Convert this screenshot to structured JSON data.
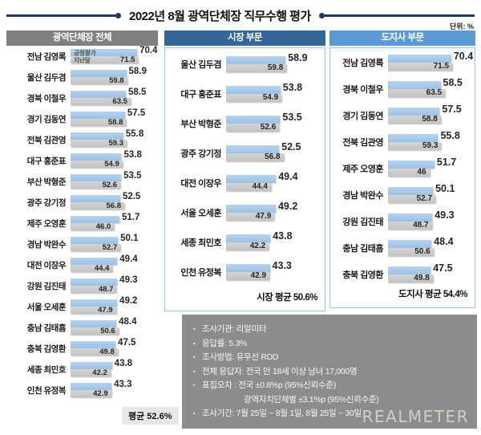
{
  "title": "2022년 8월 광역단체장 직무수행 평가",
  "unit_label": "단위: %",
  "legend": {
    "current": "긍정평가",
    "previous": "지난달"
  },
  "colors": {
    "accent_navy": "#1f3864",
    "header_all_bg": "#808080",
    "header_mayor_bg": "#33669a",
    "header_governor_bg": "#5b9bd5",
    "panel_border": "#9dc3e6",
    "bar_current": "#9dc3e6",
    "bar_previous": "#c9c9c9",
    "info_box_bg": "#8c8c8c",
    "average_chip_bg": "#e7e7e7"
  },
  "chart_data": [
    {
      "type": "bar",
      "orientation": "horizontal",
      "title": "광역단체장 전체",
      "unit": "%",
      "categories": [
        "전남 김영록",
        "울산 김두겸",
        "경북 이철우",
        "경기 김동연",
        "전북 김관영",
        "대구 홍준표",
        "부산 박형준",
        "광주 강기정",
        "제주 오영훈",
        "경남 박완수",
        "대전 이장우",
        "강원 김진태",
        "서울 오세훈",
        "충남 김태흠",
        "충북 김영환",
        "세종 최민호",
        "인천 유정복"
      ],
      "series": [
        {
          "name": "긍정평가",
          "values": [
            70.4,
            58.9,
            58.5,
            57.5,
            55.8,
            53.8,
            53.5,
            52.5,
            51.7,
            50.1,
            49.4,
            49.3,
            49.2,
            48.4,
            47.5,
            43.8,
            43.3
          ],
          "labels": [
            "70.4",
            "58.9",
            "58.5",
            "57.5",
            "55.8",
            "53.8",
            "53.5",
            "52.5",
            "51.7",
            "50.1",
            "49.4",
            "49.3",
            "49.2",
            "48.4",
            "47.5",
            "43.8",
            "43.3"
          ]
        },
        {
          "name": "지난달",
          "values": [
            71.5,
            59.8,
            63.5,
            58.8,
            59.3,
            54.9,
            52.6,
            56.8,
            46.0,
            52.7,
            44.4,
            48.7,
            47.9,
            50.6,
            49.8,
            42.2,
            42.9
          ],
          "labels": [
            "71.5",
            "59.8",
            "63.5",
            "58.8",
            "59.3",
            "54.9",
            "52.6",
            "56.8",
            "46.0",
            "52.7",
            "44.4",
            "48.7",
            "47.9",
            "50.6",
            "49.8",
            "42.2",
            "42.9"
          ]
        }
      ],
      "average_label": "평균 52.6%"
    },
    {
      "type": "bar",
      "orientation": "horizontal",
      "title": "시장 부문",
      "unit": "%",
      "categories": [
        "울산 김두겸",
        "대구 홍준표",
        "부산 박형준",
        "광주 강기정",
        "대전 이장우",
        "서울 오세훈",
        "세종 최민호",
        "인천 유정복"
      ],
      "series": [
        {
          "name": "긍정평가",
          "values": [
            58.9,
            53.8,
            53.5,
            52.5,
            49.4,
            49.2,
            43.8,
            43.3
          ],
          "labels": [
            "58.9",
            "53.8",
            "53.5",
            "52.5",
            "49.4",
            "49.2",
            "43.8",
            "43.3"
          ]
        },
        {
          "name": "지난달",
          "values": [
            59.8,
            54.9,
            52.6,
            56.8,
            44.4,
            47.9,
            42.2,
            42.9
          ],
          "labels": [
            "59.8",
            "54.9",
            "52.6",
            "56.8",
            "44.4",
            "47.9",
            "42.2",
            "42.9"
          ]
        }
      ],
      "average_label": "시장 평균 50.6%"
    },
    {
      "type": "bar",
      "orientation": "horizontal",
      "title": "도지사 부문",
      "unit": "%",
      "categories": [
        "전남 김영록",
        "경북 이철우",
        "경기 김동연",
        "전북 김관영",
        "제주 오영훈",
        "경남 박완수",
        "강원 김진태",
        "충남 김태흠",
        "충북 김영환"
      ],
      "series": [
        {
          "name": "긍정평가",
          "values": [
            70.4,
            58.5,
            57.5,
            55.8,
            51.7,
            50.1,
            49.3,
            48.4,
            47.5
          ],
          "labels": [
            "70.4",
            "58.5",
            "57.5",
            "55.8",
            "51.7",
            "50.1",
            "49.3",
            "48.4",
            "47.5"
          ]
        },
        {
          "name": "지난달",
          "values": [
            71.5,
            63.5,
            58.8,
            59.3,
            46,
            52.7,
            48.7,
            50.6,
            49.8
          ],
          "labels": [
            "71.5",
            "63.5",
            "58.8",
            "59.3",
            "46",
            "52.7",
            "48.7",
            "50.6",
            "49.8"
          ]
        }
      ],
      "average_label": "도지사 평균 54.4%"
    }
  ],
  "survey_info": {
    "lines": [
      {
        "bullet": true,
        "text": "조사기관: 리얼미터"
      },
      {
        "bullet": true,
        "text": "응답률: 5.3%"
      },
      {
        "bullet": true,
        "text": "조사방법: 유무선 RDD"
      },
      {
        "bullet": true,
        "text": "전체 응답자: 전국 만 18세 이상 남녀 17,000명"
      },
      {
        "bullet": true,
        "text": "표집오차 : 전국 ±0.8%p (95%신뢰수준)"
      },
      {
        "bullet": false,
        "text": "광역자치단체별 ±3.1%p (95%신뢰수준)"
      },
      {
        "bullet": true,
        "text": "조사기간: 7월 25일 ~ 8월 1일, 8월 25일 ~ 30일"
      }
    ]
  },
  "watermark": "REALMETER"
}
